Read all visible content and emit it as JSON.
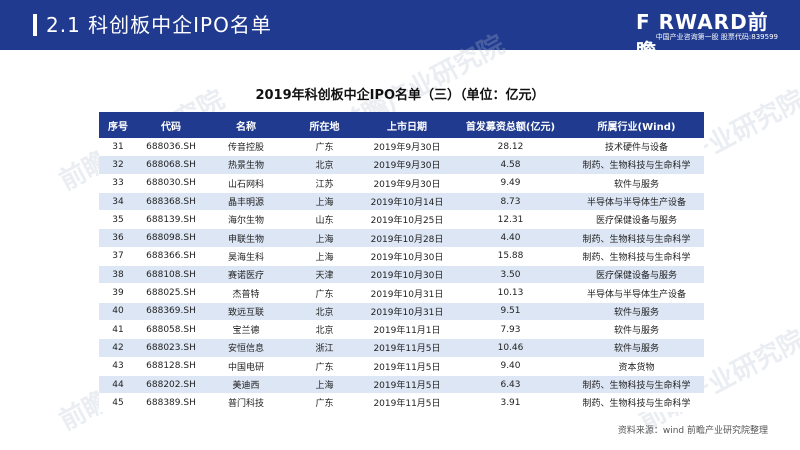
{
  "header": {
    "title": "2.1  科创板中企IPO名单",
    "logo_brand": "F RWARD前瞻",
    "logo_sub": "中国产业咨询第一股  股票代码:839599",
    "accent": "#1f3a8f"
  },
  "table": {
    "title": "2019年科创板中企IPO名单（三）（单位：亿元）",
    "columns": [
      "序号",
      "代码",
      "名称",
      "所在地",
      "上市日期",
      "首发募资总额(亿元)",
      "所属行业(Wind)"
    ],
    "rows": [
      [
        "31",
        "688036.SH",
        "传音控股",
        "广东",
        "2019年9月30日",
        "28.12",
        "技术硬件与设备"
      ],
      [
        "32",
        "688068.SH",
        "热景生物",
        "北京",
        "2019年9月30日",
        "4.58",
        "制药、生物科技与生命科学"
      ],
      [
        "33",
        "688030.SH",
        "山石网科",
        "江苏",
        "2019年9月30日",
        "9.49",
        "软件与服务"
      ],
      [
        "34",
        "688368.SH",
        "晶丰明源",
        "上海",
        "2019年10月14日",
        "8.73",
        "半导体与半导体生产设备"
      ],
      [
        "35",
        "688139.SH",
        "海尔生物",
        "山东",
        "2019年10月25日",
        "12.31",
        "医疗保健设备与服务"
      ],
      [
        "36",
        "688098.SH",
        "申联生物",
        "上海",
        "2019年10月28日",
        "4.40",
        "制药、生物科技与生命科学"
      ],
      [
        "37",
        "688366.SH",
        "昊海生科",
        "上海",
        "2019年10月30日",
        "15.88",
        "制药、生物科技与生命科学"
      ],
      [
        "38",
        "688108.SH",
        "赛诺医疗",
        "天津",
        "2019年10月30日",
        "3.50",
        "医疗保健设备与服务"
      ],
      [
        "39",
        "688025.SH",
        "杰普特",
        "广东",
        "2019年10月31日",
        "10.13",
        "半导体与半导体生产设备"
      ],
      [
        "40",
        "688369.SH",
        "致远互联",
        "北京",
        "2019年10月31日",
        "9.51",
        "软件与服务"
      ],
      [
        "41",
        "688058.SH",
        "宝兰德",
        "北京",
        "2019年11月1日",
        "7.93",
        "软件与服务"
      ],
      [
        "42",
        "688023.SH",
        "安恒信息",
        "浙江",
        "2019年11月5日",
        "10.46",
        "软件与服务"
      ],
      [
        "43",
        "688128.SH",
        "中国电研",
        "广东",
        "2019年11月5日",
        "9.40",
        "资本货物"
      ],
      [
        "44",
        "688202.SH",
        "美迪西",
        "上海",
        "2019年11月5日",
        "6.43",
        "制药、生物科技与生命科学"
      ],
      [
        "45",
        "688389.SH",
        "普门科技",
        "广东",
        "2019年11月5日",
        "3.91",
        "制药、生物科技与生命科学"
      ]
    ]
  },
  "source": "资料来源：wind 前瞻产业研究院整理",
  "watermark": "前瞻产业研究院"
}
